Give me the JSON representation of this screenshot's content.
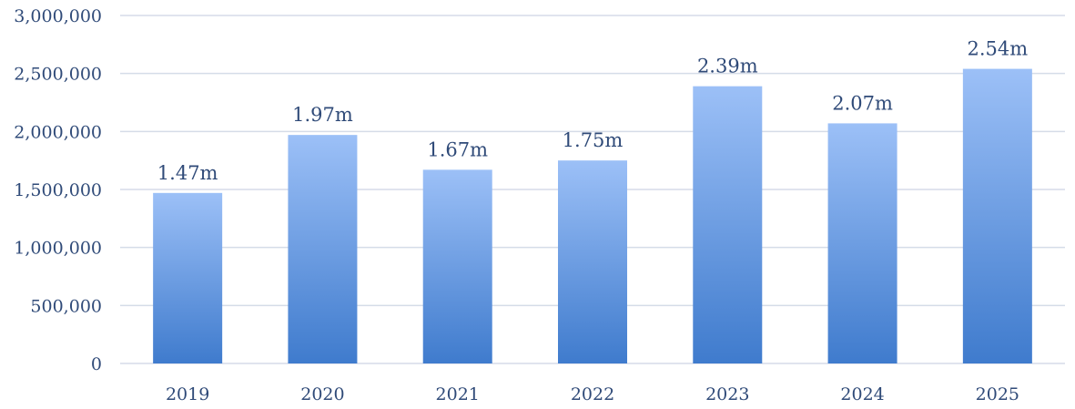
{
  "chart_data": {
    "type": "bar",
    "title": "",
    "xlabel": "",
    "ylabel": "",
    "categories": [
      "2019",
      "2020",
      "2021",
      "2022",
      "2023",
      "2024",
      "2025"
    ],
    "values": [
      1470000,
      1970000,
      1670000,
      1750000,
      2390000,
      2070000,
      2540000
    ],
    "data_labels": [
      "1.47m",
      "1.97m",
      "1.67m",
      "1.75m",
      "2.39m",
      "2.07m",
      "2.54m"
    ],
    "ylim": [
      0,
      3000000
    ],
    "y_ticks": [
      0,
      500000,
      1000000,
      1500000,
      2000000,
      2500000,
      3000000
    ],
    "y_tick_labels": [
      "0",
      "500,000",
      "1,000,000",
      "1,500,000",
      "2,000,000",
      "2,500,000",
      "3,000,000"
    ],
    "grid": true,
    "legend": "none",
    "colors": {
      "bar_top": "#9cc0f7",
      "bar_bottom": "#3f7bcd",
      "text": "#2f4a78",
      "grid": "#d5dce8"
    }
  }
}
